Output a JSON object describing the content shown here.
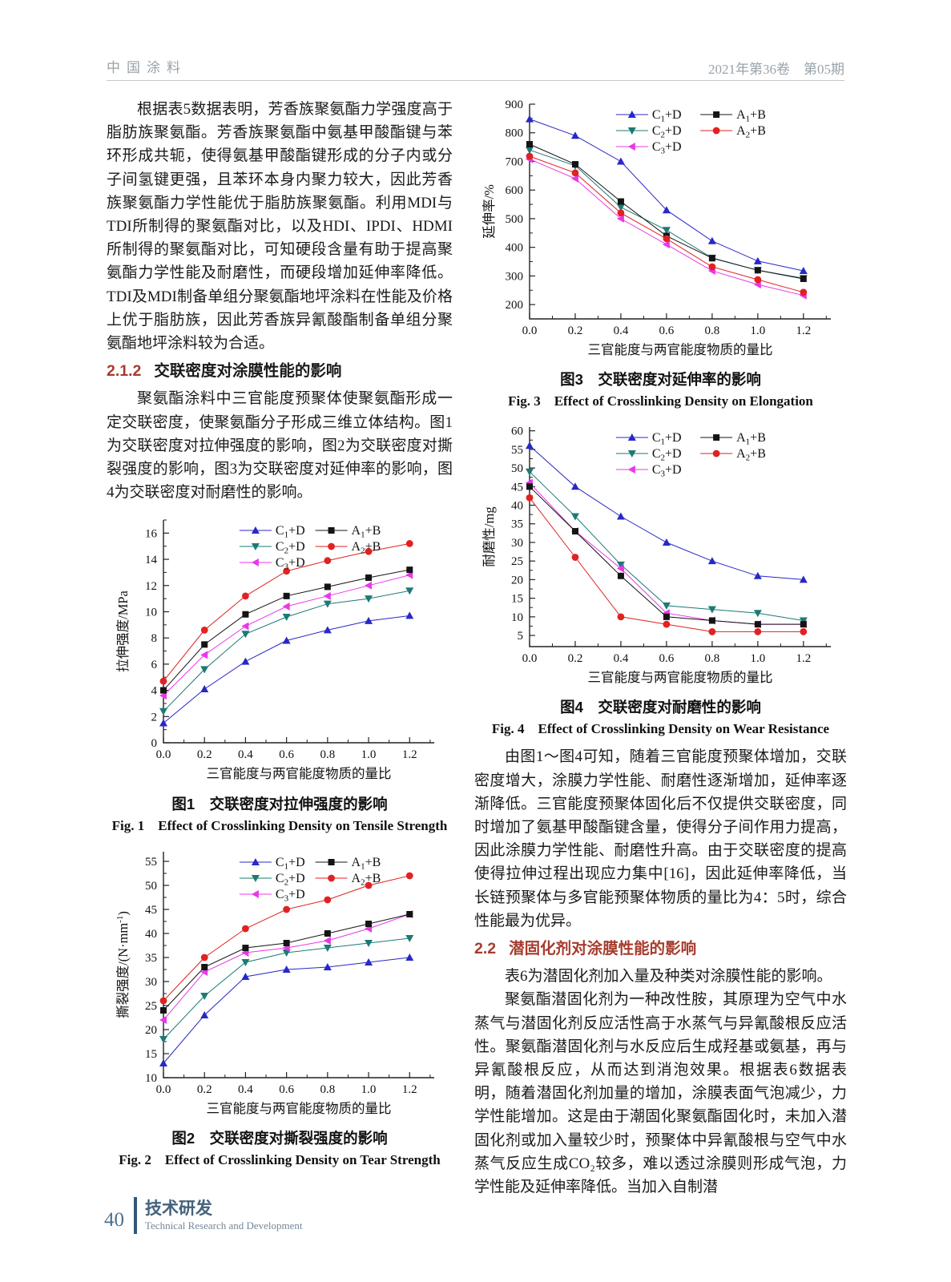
{
  "header": {
    "journal": "中国涂料",
    "issue": "2021年第36卷　第05期"
  },
  "left_column": {
    "para1": "根据表5数据表明，芳香族聚氨酯力学强度高于脂肪族聚氨酯。芳香族聚氨酯中氨基甲酸酯键与苯环形成共轭，使得氨基甲酸酯键形成的分子内或分子间氢键更强，且苯环本身内聚力较大，因此芳香族聚氨酯力学性能优于脂肪族聚氨酯。利用MDI与TDI所制得的聚氨酯对比，以及HDI、IPDI、HDMI所制得的聚氨酯对比，可知硬段含量有助于提高聚氨酯力学性能及耐磨性，而硬段增加延伸率降低。TDI及MDI制备单组分聚氨酯地坪涂料在性能及价格上优于脂肪族，因此芳香族异氰酸酯制备单组分聚氨酯地坪涂料较为合适。",
    "section_212": {
      "number": "2.1.2",
      "title": "交联密度对涂膜性能的影响"
    },
    "para2": "聚氨酯涂料中三官能度预聚体使聚氨酯形成一定交联密度，使聚氨酯分子形成三维立体结构。图1为交联密度对拉伸强度的影响，图2为交联密度对撕裂强度的影响，图3为交联密度对延伸率的影响，图4为交联密度对耐磨性的影响。",
    "fig1_caption_cn": "图1　交联密度对拉伸强度的影响",
    "fig1_caption_en": "Fig. 1　Effect of Crosslinking Density on Tensile Strength",
    "fig2_caption_cn": "图2　交联密度对撕裂强度的影响",
    "fig2_caption_en": "Fig. 2　Effect of Crosslinking Density on Tear Strength"
  },
  "right_column": {
    "fig3_caption_cn": "图3　交联密度对延伸率的影响",
    "fig3_caption_en": "Fig. 3　Effect of Crosslinking Density on Elongation",
    "fig4_caption_cn": "图4　交联密度对耐磨性的影响",
    "fig4_caption_en": "Fig. 4　Effect of Crosslinking Density on Wear Resistance",
    "para1": "由图1～图4可知，随着三官能度预聚体增加，交联密度增大，涂膜力学性能、耐磨性逐渐增加，延伸率逐渐降低。三官能度预聚体固化后不仅提供交联密度，同时增加了氨基甲酸酯键含量，使得分子间作用力提高，因此涂膜力学性能、耐磨性升高。由于交联密度的提高使得拉伸过程出现应力集中[16]，因此延伸率降低，当长链预聚体与多官能预聚体物质的量比为4：5时，综合性能最为优异。",
    "section_22": {
      "number": "2.2",
      "title": "潜固化剂对涂膜性能的影响"
    },
    "para2": "表6为潜固化剂加入量及种类对涂膜性能的影响。",
    "para3": "聚氨酯潜固化剂为一种改性胺，其原理为空气中水蒸气与潜固化剂反应活性高于水蒸气与异氰酸根反应活性。聚氨酯潜固化剂与水反应后生成羟基或氨基，再与异氰酸根反应，从而达到消泡效果。根据表6数据表明，随着潜固化剂加量的增加，涂膜表面气泡减少，力学性能增加。这是由于潮固化聚氨酯固化时，未加入潜固化剂或加入量较少时，预聚体中异氰酸根与空气中水蒸气反应生成CO₂较多，难以透过涂膜则形成气泡，力学性能及延伸率降低。当加入自制潜"
  },
  "footer": {
    "page": "40",
    "section_cn": "技术研发",
    "section_en": "Technical Research and Development"
  },
  "colors": {
    "series_c1d": "#2828c8",
    "series_c2d": "#1b7b74",
    "series_c3d": "#e838e8",
    "series_a1b": "#141414",
    "series_a2b": "#e02222",
    "section_heading_red": "#a63c2e",
    "footer_blue": "#45627c"
  },
  "chart_data": [
    {
      "type": "line",
      "title": "交联密度对拉伸强度的影响",
      "xlabel": "三官能度与两官能度物质的量比",
      "ylabel": "拉伸强度/MPa",
      "x": [
        0.0,
        0.2,
        0.4,
        0.6,
        0.8,
        1.0,
        1.2
      ],
      "xlim": [
        0,
        1.32
      ],
      "xticks": [
        0.0,
        0.2,
        0.4,
        0.6,
        0.8,
        1.0,
        1.2
      ],
      "ylim": [
        0,
        17
      ],
      "yticks": [
        0,
        2,
        4,
        6,
        8,
        10,
        12,
        14,
        16
      ],
      "grid": false,
      "legend_position": "top-inside",
      "series": [
        {
          "name": "C₁+D",
          "marker": "triangle-up",
          "color": "#2828c8",
          "values": [
            1.5,
            4.1,
            6.2,
            7.8,
            8.6,
            9.3,
            9.7
          ]
        },
        {
          "name": "C₂+D",
          "marker": "triangle-down",
          "color": "#1b7b74",
          "values": [
            2.4,
            5.6,
            8.3,
            9.6,
            10.6,
            11.0,
            11.6
          ]
        },
        {
          "name": "C₃+D",
          "marker": "triangle-left",
          "color": "#e838e8",
          "values": [
            3.6,
            6.7,
            8.9,
            10.4,
            11.2,
            12.0,
            12.8
          ]
        },
        {
          "name": "A₁+B",
          "marker": "square",
          "color": "#141414",
          "values": [
            4.0,
            7.5,
            9.8,
            11.2,
            11.9,
            12.6,
            13.2
          ]
        },
        {
          "name": "A₂+B",
          "marker": "circle",
          "color": "#e02222",
          "values": [
            4.7,
            8.6,
            11.2,
            13.1,
            13.9,
            14.6,
            15.2
          ]
        }
      ]
    },
    {
      "type": "line",
      "title": "交联密度对撕裂强度的影响",
      "xlabel": "三官能度与两官能度物质的量比",
      "ylabel": "撕裂强度/(N·mm⁻¹)",
      "x": [
        0.0,
        0.2,
        0.4,
        0.6,
        0.8,
        1.0,
        1.2
      ],
      "xlim": [
        0,
        1.32
      ],
      "xticks": [
        0.0,
        0.2,
        0.4,
        0.6,
        0.8,
        1.0,
        1.2
      ],
      "ylim": [
        10,
        57
      ],
      "yticks": [
        10,
        15,
        20,
        25,
        30,
        35,
        40,
        45,
        50,
        55
      ],
      "grid": false,
      "legend_position": "top-inside",
      "series": [
        {
          "name": "C₁+D",
          "marker": "triangle-up",
          "color": "#2828c8",
          "values": [
            13,
            23,
            31,
            32.5,
            33,
            34,
            35
          ]
        },
        {
          "name": "C₂+D",
          "marker": "triangle-down",
          "color": "#1b7b74",
          "values": [
            18,
            27,
            34,
            36,
            37,
            38,
            39
          ]
        },
        {
          "name": "C₃+D",
          "marker": "triangle-left",
          "color": "#e838e8",
          "values": [
            22,
            32,
            36,
            37,
            38.5,
            41,
            44
          ]
        },
        {
          "name": "A₁+B",
          "marker": "square",
          "color": "#141414",
          "values": [
            24,
            33,
            37,
            38,
            40,
            42,
            44
          ]
        },
        {
          "name": "A₂+B",
          "marker": "circle",
          "color": "#e02222",
          "values": [
            26,
            35,
            41,
            45,
            47,
            50,
            52
          ]
        }
      ]
    },
    {
      "type": "line",
      "title": "交联密度对延伸率的影响",
      "xlabel": "三官能度与两官能度物质的量比",
      "ylabel": "延伸率/%",
      "x": [
        0.0,
        0.2,
        0.4,
        0.6,
        0.8,
        1.0,
        1.2
      ],
      "xlim": [
        0,
        1.32
      ],
      "xticks": [
        0.0,
        0.2,
        0.4,
        0.6,
        0.8,
        1.0,
        1.2
      ],
      "ylim": [
        150,
        900
      ],
      "yticks": [
        200,
        300,
        400,
        500,
        600,
        700,
        800,
        900
      ],
      "grid": false,
      "legend_position": "top-inside",
      "series": [
        {
          "name": "C₁+D",
          "marker": "triangle-up",
          "color": "#2828c8",
          "values": [
            848,
            790,
            700,
            530,
            422,
            352,
            318
          ]
        },
        {
          "name": "C₂+D",
          "marker": "triangle-down",
          "color": "#1b7b74",
          "values": [
            740,
            685,
            540,
            460,
            363,
            320,
            292
          ]
        },
        {
          "name": "C₃+D",
          "marker": "triangle-left",
          "color": "#e838e8",
          "values": [
            708,
            640,
            500,
            410,
            318,
            270,
            232
          ]
        },
        {
          "name": "A₁+B",
          "marker": "square",
          "color": "#141414",
          "values": [
            760,
            690,
            560,
            440,
            362,
            320,
            290
          ]
        },
        {
          "name": "A₂+B",
          "marker": "circle",
          "color": "#e02222",
          "values": [
            718,
            660,
            520,
            430,
            332,
            287,
            243
          ]
        }
      ]
    },
    {
      "type": "line",
      "title": "交联密度对耐磨性的影响",
      "xlabel": "三官能度与两官能度物质的量比",
      "ylabel": "耐磨性/mg",
      "x": [
        0.0,
        0.2,
        0.4,
        0.6,
        0.8,
        1.0,
        1.2
      ],
      "xlim": [
        0,
        1.32
      ],
      "xticks": [
        0.0,
        0.2,
        0.4,
        0.6,
        0.8,
        1.0,
        1.2
      ],
      "ylim": [
        2,
        61
      ],
      "yticks": [
        5,
        10,
        15,
        20,
        25,
        30,
        35,
        40,
        45,
        50,
        55,
        60
      ],
      "grid": false,
      "legend_position": "top-inside",
      "series": [
        {
          "name": "C₁+D",
          "marker": "triangle-up",
          "color": "#2828c8",
          "values": [
            56,
            45,
            37,
            30,
            25,
            21,
            20
          ]
        },
        {
          "name": "C₂+D",
          "marker": "triangle-down",
          "color": "#1b7b74",
          "values": [
            49,
            37,
            24,
            13,
            12,
            11,
            9
          ]
        },
        {
          "name": "C₃+D",
          "marker": "triangle-left",
          "color": "#e838e8",
          "values": [
            46,
            33,
            23,
            11,
            9,
            8,
            8
          ]
        },
        {
          "name": "A₁+B",
          "marker": "square",
          "color": "#141414",
          "values": [
            45,
            33,
            21,
            10,
            9,
            8,
            8
          ]
        },
        {
          "name": "A₂+B",
          "marker": "circle",
          "color": "#e02222",
          "values": [
            42,
            26,
            10,
            8,
            6,
            6,
            6
          ]
        }
      ]
    }
  ]
}
